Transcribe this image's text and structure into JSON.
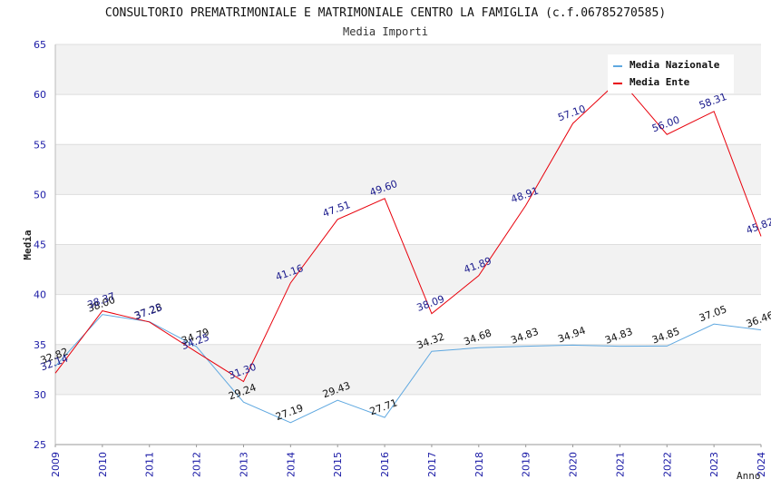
{
  "chart_data": {
    "type": "line",
    "title": "CONSULTORIO PREMATRIMONIALE E MATRIMONIALE CENTRO LA FAMIGLIA (c.f.06785270585)",
    "subtitle": "Media Importi",
    "xlabel": "Anno",
    "ylabel": "Media",
    "ylim": [
      25,
      65
    ],
    "yticks": [
      "25",
      "30",
      "35",
      "40",
      "45",
      "50",
      "55",
      "60",
      "65"
    ],
    "categories": [
      "2009",
      "2010",
      "2011",
      "2012",
      "2013",
      "2014",
      "2015",
      "2016",
      "2017",
      "2018",
      "2019",
      "2020",
      "2021",
      "2022",
      "2023",
      "2024"
    ],
    "grid": true,
    "legend_position": "top-right",
    "series": [
      {
        "name": "Media Nazionale",
        "color": "#5fa8e0",
        "label_color": "#111111",
        "values": [
          32.82,
          38.0,
          37.28,
          34.79,
          29.24,
          27.19,
          29.43,
          27.71,
          34.32,
          34.68,
          34.83,
          34.94,
          34.83,
          34.85,
          37.05,
          36.46
        ],
        "labels": [
          "32.82",
          "38.00",
          "37.28",
          "34.79",
          "29.24",
          "27.19",
          "29.43",
          "27.71",
          "34.32",
          "34.68",
          "34.83",
          "34.94",
          "34.83",
          "34.85",
          "37.05",
          "36.46"
        ]
      },
      {
        "name": "Media Ente",
        "color": "#e8000b",
        "label_color": "#1a1a8c",
        "values": [
          32.14,
          38.37,
          37.25,
          34.25,
          31.3,
          41.16,
          47.51,
          49.6,
          38.09,
          41.89,
          48.91,
          57.1,
          61.5,
          56.0,
          58.31,
          45.82
        ],
        "labels": [
          "32.14",
          "38.37",
          "37.25",
          "34.25",
          "31.30",
          "41.16",
          "47.51",
          "49.60",
          "38.09",
          "41.89",
          "48.91",
          "57.10",
          "",
          "56.00",
          "58.31",
          "45.82"
        ]
      }
    ]
  }
}
